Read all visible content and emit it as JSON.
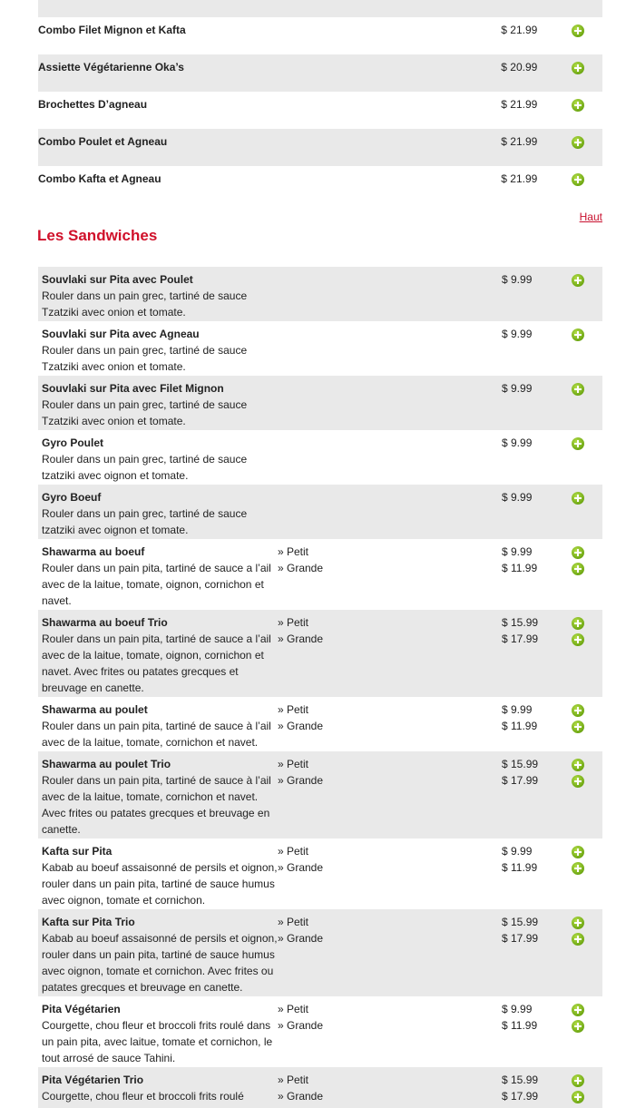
{
  "combos": [
    {
      "name": "",
      "price": "",
      "gray": true
    },
    {
      "name": "Combo Filet Mignon et Kafta",
      "price": "$ 21.99"
    },
    {
      "name": "Assiette Végétarienne Oka’s",
      "price": "$ 20.99"
    },
    {
      "name": "Brochettes D’agneau",
      "price": "$ 21.99"
    },
    {
      "name": "Combo Poulet et Agneau",
      "price": "$ 21.99"
    },
    {
      "name": "Combo Kafta et Agneau",
      "price": "$ 21.99"
    }
  ],
  "top_link": "Haut",
  "section_title": "Les Sandwiches",
  "icons": {
    "add": "plus-circle-icon",
    "add_color": "#7ab51d"
  },
  "sandwiches": [
    {
      "name": "Souvlaki sur Pita avec Poulet",
      "desc": "Rouler dans un pain grec, tartiné de sauce Tzatziki avec onion et tomate.",
      "options": [
        {
          "size": "",
          "price": "$ 9.99"
        }
      ]
    },
    {
      "name": "Souvlaki sur Pita avec Agneau",
      "desc": "Rouler dans un pain grec, tartiné de sauce Tzatziki avec onion et tomate.",
      "options": [
        {
          "size": "",
          "price": "$ 9.99"
        }
      ]
    },
    {
      "name": "Souvlaki sur Pita avec Filet Mignon",
      "desc": "Rouler dans un pain grec, tartiné de sauce Tzatziki avec onion et tomate.",
      "options": [
        {
          "size": "",
          "price": "$ 9.99"
        }
      ]
    },
    {
      "name": "Gyro Poulet",
      "desc": "Rouler dans un pain grec, tartiné de sauce tzatziki avec oignon et tomate.",
      "options": [
        {
          "size": "",
          "price": "$ 9.99"
        }
      ]
    },
    {
      "name": "Gyro Boeuf",
      "desc": "Rouler dans un pain grec, tartiné de sauce tzatziki avec oignon et tomate.",
      "options": [
        {
          "size": "",
          "price": "$ 9.99"
        }
      ]
    },
    {
      "name": "Shawarma au boeuf",
      "desc": "Rouler dans un pain pita, tartiné de sauce a l’ail avec de la laitue, tomate, oignon, cornichon et navet.",
      "options": [
        {
          "size": "» Petit",
          "price": "$ 9.99"
        },
        {
          "size": "» Grande",
          "price": "$ 11.99"
        }
      ]
    },
    {
      "name": "Shawarma au boeuf Trio",
      "desc": "Rouler dans un pain pita, tartiné de sauce a l’ail avec de la laitue, tomate, oignon, cornichon et navet. Avec frites ou patates grecques et breuvage en canette.",
      "options": [
        {
          "size": "» Petit",
          "price": "$ 15.99"
        },
        {
          "size": "» Grande",
          "price": "$ 17.99"
        }
      ]
    },
    {
      "name": "Shawarma au poulet",
      "desc": "Rouler dans un pain pita, tartiné de sauce à l’ail avec de la laitue, tomate, cornichon et navet.",
      "options": [
        {
          "size": "» Petit",
          "price": "$ 9.99"
        },
        {
          "size": "» Grande",
          "price": "$ 11.99"
        }
      ]
    },
    {
      "name": "Shawarma au poulet Trio",
      "desc": "Rouler dans un pain pita, tartiné de sauce à l’ail avec de la laitue, tomate, cornichon et navet. Avec frites ou patates grecques et breuvage en canette.",
      "options": [
        {
          "size": "» Petit",
          "price": "$ 15.99"
        },
        {
          "size": "» Grande",
          "price": "$ 17.99"
        }
      ]
    },
    {
      "name": "Kafta sur Pita",
      "desc": "Kabab au boeuf assaisonné de persils et oignon, rouler dans un pain pita, tartiné de sauce humus avec oignon, tomate et cornichon.",
      "options": [
        {
          "size": "» Petit",
          "price": "$ 9.99"
        },
        {
          "size": "» Grande",
          "price": "$ 11.99"
        }
      ]
    },
    {
      "name": "Kafta sur Pita Trio",
      "desc": "Kabab au boeuf assaisonné de persils et oignon, rouler dans un pain pita, tartiné de sauce humus avec oignon, tomate et cornichon. Avec frites ou patates grecques et breuvage en canette.",
      "options": [
        {
          "size": "» Petit",
          "price": "$ 15.99"
        },
        {
          "size": "» Grande",
          "price": "$ 17.99"
        }
      ]
    },
    {
      "name": "Pita Végétarien",
      "desc": "Courgette, chou fleur et broccoli frits roulé dans un pain pita, avec laitue, tomate et cornichon, le tout arrosé de sauce Tahini.",
      "options": [
        {
          "size": "» Petit",
          "price": "$ 9.99"
        },
        {
          "size": "» Grande",
          "price": "$ 11.99"
        }
      ]
    },
    {
      "name": "Pita Végétarien Trio",
      "desc": "Courgette, chou fleur et broccoli frits roulé",
      "options": [
        {
          "size": "» Petit",
          "price": "$ 15.99"
        },
        {
          "size": "» Grande",
          "price": "$ 17.99"
        }
      ]
    }
  ]
}
